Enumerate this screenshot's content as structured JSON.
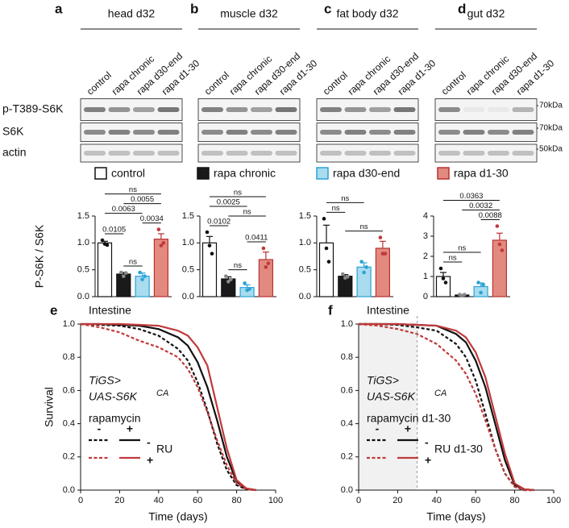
{
  "blots": {
    "rows": [
      "p-T389-S6K",
      "S6K",
      "actin"
    ],
    "markers": [
      "70kDa",
      "70kDa",
      "50kDa"
    ]
  },
  "legend": [
    {
      "name": "control",
      "color": "#ffffff",
      "stroke": "#111111"
    },
    {
      "name": "rapa chronic",
      "color": "#1a1a1a",
      "stroke": "#111111"
    },
    {
      "name": "rapa d30-end",
      "color": "#a9dcef",
      "stroke": "#2aa3d6"
    },
    {
      "name": "rapa d1-30",
      "color": "#e38a80",
      "stroke": "#b83232"
    }
  ],
  "chart_data": [
    {
      "type": "bar",
      "panel": "a",
      "title": "head d32",
      "ylabel": "P-S6K / S6K",
      "categories": [
        "control",
        "rapa chronic",
        "rapa d30-end",
        "rapa d1-30"
      ],
      "values": [
        1.0,
        0.42,
        0.38,
        1.07
      ],
      "errors": [
        0.03,
        0.03,
        0.06,
        0.1
      ],
      "points": [
        [
          1.05,
          0.98,
          0.96
        ],
        [
          0.45,
          0.38,
          0.44
        ],
        [
          0.45,
          0.32,
          0.38
        ],
        [
          1.25,
          0.95,
          1.0
        ]
      ],
      "ylim": [
        0,
        1.5
      ],
      "yticks": [
        {
          "value": 0,
          "label": "0.0"
        },
        0.5,
        {
          "value": 1,
          "label": "1.0"
        },
        1.5
      ],
      "annotations": [
        {
          "label": "ns",
          "bars": [
            0,
            3
          ]
        },
        {
          "label": "0.0055",
          "bars": [
            1,
            3
          ]
        },
        {
          "label": "0.0063",
          "bars": [
            0,
            2
          ]
        },
        {
          "label": "0.0034",
          "bars": [
            2,
            3
          ]
        },
        {
          "label": "0.0105",
          "bars": [
            0,
            1
          ]
        },
        {
          "label": "ns",
          "bars": [
            1,
            2
          ]
        }
      ]
    },
    {
      "type": "bar",
      "panel": "b",
      "title": "muscle d32",
      "categories": [
        "control",
        "rapa chronic",
        "rapa d30-end",
        "rapa d1-30"
      ],
      "values": [
        1.0,
        0.33,
        0.17,
        0.69
      ],
      "errors": [
        0.12,
        0.04,
        0.05,
        0.14
      ],
      "points": [
        [
          1.2,
          0.95,
          0.8
        ],
        [
          0.38,
          0.28,
          0.32
        ],
        [
          0.25,
          0.12,
          0.14
        ],
        [
          0.9,
          0.55,
          0.62
        ]
      ],
      "ylim": [
        0,
        1.5
      ],
      "yticks": [
        {
          "value": 0,
          "label": "0.0"
        },
        0.5,
        {
          "value": 1,
          "label": "1.0"
        },
        1.5
      ],
      "annotations": [
        {
          "label": "ns",
          "bars": [
            0,
            3
          ]
        },
        {
          "label": "0.0025",
          "bars": [
            0,
            2
          ]
        },
        {
          "label": "ns",
          "bars": [
            1,
            3
          ]
        },
        {
          "label": "0.0102",
          "bars": [
            0,
            1
          ]
        },
        {
          "label": "0.0411",
          "bars": [
            2,
            3
          ]
        },
        {
          "label": "ns",
          "bars": [
            1,
            2
          ]
        }
      ]
    },
    {
      "type": "bar",
      "panel": "c",
      "title": "fat body d32",
      "categories": [
        "control",
        "rapa chronic",
        "rapa d30-end",
        "rapa d1-30"
      ],
      "values": [
        1.0,
        0.38,
        0.55,
        0.9
      ],
      "errors": [
        0.33,
        0.03,
        0.08,
        0.13
      ],
      "points": [
        [
          1.45,
          0.9,
          0.65
        ],
        [
          0.42,
          0.35,
          0.37
        ],
        [
          0.65,
          0.45,
          0.55
        ],
        [
          1.1,
          0.8,
          0.8
        ]
      ],
      "ylim": [
        0,
        1.5
      ],
      "yticks": [
        {
          "value": 0,
          "label": "0.0"
        },
        0.5,
        {
          "value": 1,
          "label": "1.0"
        },
        1.5
      ],
      "annotations": [
        {
          "label": "ns",
          "bars": [
            0,
            2
          ]
        },
        {
          "label": "ns",
          "bars": [
            0,
            1
          ]
        },
        {
          "label": "ns",
          "bars": [
            1,
            3
          ]
        }
      ]
    },
    {
      "type": "bar",
      "panel": "d",
      "title": "gut d32",
      "categories": [
        "control",
        "rapa chronic",
        "rapa d30-end",
        "rapa d1-30"
      ],
      "values": [
        1.0,
        0.08,
        0.5,
        2.8
      ],
      "errors": [
        0.2,
        0.03,
        0.18,
        0.35
      ],
      "points": [
        [
          1.4,
          0.9,
          0.7
        ],
        [
          0.1,
          0.05,
          0.1
        ],
        [
          0.7,
          0.2,
          0.6
        ],
        [
          3.5,
          2.6,
          2.3
        ]
      ],
      "ylim": [
        0,
        4
      ],
      "yticks": [
        0,
        1,
        2,
        3,
        4
      ],
      "annotations": [
        {
          "label": "0.0363",
          "bars": [
            0,
            3
          ]
        },
        {
          "label": "0.0032",
          "bars": [
            1,
            3
          ]
        },
        {
          "label": "0.0088",
          "bars": [
            2,
            3
          ]
        },
        {
          "label": "ns",
          "bars": [
            0,
            2
          ]
        },
        {
          "label": "ns",
          "bars": [
            0,
            1
          ]
        }
      ]
    },
    {
      "type": "line",
      "panel": "e",
      "title": "Intestine",
      "xlabel": "Time (days)",
      "ylabel": "Survival",
      "genotype": [
        "TiGS>",
        "UAS-S6K"
      ],
      "genotype_sup": "CA",
      "legend": {
        "col_title": "rapamycin",
        "cols": [
          "-",
          "+"
        ],
        "row_title": "RU",
        "rows": [
          "-",
          "+"
        ]
      },
      "x": [
        0,
        10,
        20,
        30,
        40,
        50,
        55,
        60,
        65,
        70,
        75,
        80,
        85,
        90
      ],
      "series": [
        {
          "color": "#111111",
          "dash": true,
          "values": [
            1,
            0.995,
            0.99,
            0.97,
            0.93,
            0.85,
            0.78,
            0.65,
            0.48,
            0.28,
            0.12,
            0.03,
            0.005,
            0
          ]
        },
        {
          "color": "#111111",
          "dash": false,
          "values": [
            1,
            1,
            0.995,
            0.99,
            0.97,
            0.92,
            0.87,
            0.77,
            0.62,
            0.42,
            0.2,
            0.05,
            0.01,
            0
          ]
        },
        {
          "color": "#c0393b",
          "dash": true,
          "values": [
            1,
            0.98,
            0.95,
            0.9,
            0.86,
            0.8,
            0.73,
            0.62,
            0.47,
            0.3,
            0.15,
            0.04,
            0.005,
            0
          ]
        },
        {
          "color": "#c0393b",
          "dash": false,
          "values": [
            1,
            1,
            1,
            0.995,
            0.99,
            0.96,
            0.93,
            0.86,
            0.75,
            0.5,
            0.25,
            0.06,
            0.01,
            0
          ]
        }
      ],
      "xlim": [
        0,
        100
      ],
      "xticks": [
        0,
        20,
        40,
        60,
        80,
        100
      ],
      "ylim": [
        0,
        1
      ],
      "yticks": [
        {
          "value": 0,
          "label": "0.0"
        },
        0.2,
        0.4,
        0.6,
        0.8,
        {
          "value": 1,
          "label": "1.0"
        }
      ]
    },
    {
      "type": "line",
      "panel": "f",
      "title": "Intestine",
      "xlabel": "Time (days)",
      "genotype": [
        "TiGS>",
        "UAS-S6K"
      ],
      "genotype_sup": "CA",
      "legend": {
        "col_title": "rapamycin d1-30",
        "cols": [
          "-",
          "+"
        ],
        "row_title": "RU d1-30",
        "rows": [
          "-",
          "+"
        ]
      },
      "shade": [
        0,
        30
      ],
      "x": [
        0,
        10,
        20,
        30,
        40,
        50,
        55,
        60,
        65,
        70,
        75,
        80,
        85,
        90
      ],
      "series": [
        {
          "color": "#111111",
          "dash": true,
          "values": [
            1,
            1,
            0.995,
            0.98,
            0.96,
            0.88,
            0.8,
            0.66,
            0.46,
            0.25,
            0.1,
            0.02,
            0,
            0
          ]
        },
        {
          "color": "#111111",
          "dash": false,
          "values": [
            1,
            1,
            1,
            0.995,
            0.99,
            0.94,
            0.89,
            0.78,
            0.62,
            0.4,
            0.18,
            0.03,
            0.005,
            0
          ]
        },
        {
          "color": "#c0393b",
          "dash": true,
          "values": [
            1,
            0.99,
            0.97,
            0.94,
            0.88,
            0.78,
            0.7,
            0.58,
            0.42,
            0.25,
            0.1,
            0.02,
            0,
            0
          ]
        },
        {
          "color": "#c0393b",
          "dash": false,
          "values": [
            1,
            1,
            1,
            0.995,
            0.99,
            0.96,
            0.92,
            0.83,
            0.68,
            0.45,
            0.22,
            0.04,
            0.005,
            0
          ]
        }
      ],
      "xlim": [
        0,
        100
      ],
      "xticks": [
        0,
        20,
        40,
        60,
        80,
        100
      ],
      "ylim": [
        0,
        1
      ],
      "yticks": [
        {
          "value": 0,
          "label": "0.0"
        },
        0.2,
        0.4,
        0.6,
        0.8,
        {
          "value": 1,
          "label": "1.0"
        }
      ]
    }
  ]
}
